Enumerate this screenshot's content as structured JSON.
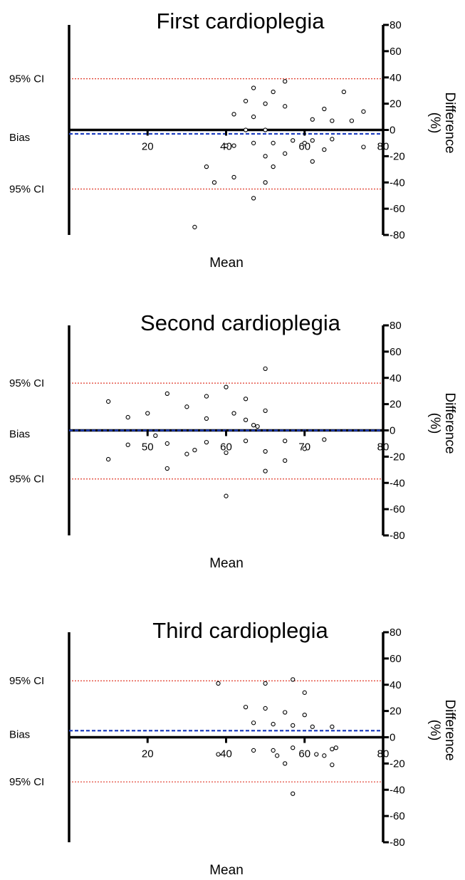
{
  "colors": {
    "axis": "#000000",
    "bias_line": "#1f3fbf",
    "ci_line": "#e03a2a",
    "points": "#000000"
  },
  "chart_data": [
    {
      "type": "scatter",
      "title": "First cardioplegia",
      "xlabel": "Mean",
      "ylabel_line1": "Difference",
      "ylabel_line2": "(%)",
      "xlim": [
        0,
        80
      ],
      "ylim": [
        -80,
        80
      ],
      "x_ticks": [
        20,
        40,
        60,
        80
      ],
      "y_ticks": [
        80,
        60,
        40,
        20,
        0,
        -20,
        -40,
        -60,
        -80
      ],
      "grid": false,
      "bias_label": "Bias",
      "ci_upper_label": "95% CI",
      "ci_lower_label": "95% CI",
      "bias": -3,
      "ci_upper": 39,
      "ci_lower": -45,
      "points": [
        [
          32,
          -74
        ],
        [
          35,
          -28
        ],
        [
          37,
          -40
        ],
        [
          40,
          -12
        ],
        [
          42,
          12
        ],
        [
          42,
          -12
        ],
        [
          42,
          -36
        ],
        [
          45,
          22
        ],
        [
          45,
          0
        ],
        [
          47,
          32
        ],
        [
          47,
          10
        ],
        [
          47,
          -10
        ],
        [
          47,
          -52
        ],
        [
          50,
          20
        ],
        [
          50,
          0
        ],
        [
          50,
          -20
        ],
        [
          50,
          -40
        ],
        [
          52,
          29
        ],
        [
          52,
          -10
        ],
        [
          52,
          -28
        ],
        [
          55,
          37
        ],
        [
          55,
          18
        ],
        [
          55,
          -18
        ],
        [
          57,
          -8
        ],
        [
          60,
          -10
        ],
        [
          62,
          8
        ],
        [
          62,
          -8
        ],
        [
          62,
          -24
        ],
        [
          65,
          16
        ],
        [
          65,
          -15
        ],
        [
          67,
          7
        ],
        [
          67,
          -7
        ],
        [
          70,
          29
        ],
        [
          72,
          7
        ],
        [
          75,
          14
        ],
        [
          75,
          -13
        ]
      ]
    },
    {
      "type": "scatter",
      "title": "Second cardioplegia",
      "xlabel": "Mean",
      "ylabel_line1": "Difference",
      "ylabel_line2": "(%)",
      "xlim": [
        40,
        80
      ],
      "ylim": [
        -80,
        80
      ],
      "x_ticks": [
        50,
        60,
        70,
        80
      ],
      "y_ticks": [
        80,
        60,
        40,
        20,
        0,
        -20,
        -40,
        -60,
        -80
      ],
      "grid": false,
      "bias_label": "Bias",
      "ci_upper_label": "95% CI",
      "ci_lower_label": "95% CI",
      "bias": 0,
      "ci_upper": 36,
      "ci_lower": -37,
      "points": [
        [
          45,
          22
        ],
        [
          45,
          -22
        ],
        [
          47.5,
          10
        ],
        [
          47.5,
          -11
        ],
        [
          50,
          13
        ],
        [
          51,
          -4
        ],
        [
          52.5,
          28
        ],
        [
          52.5,
          -10
        ],
        [
          52.5,
          -29
        ],
        [
          55,
          18
        ],
        [
          55,
          -18
        ],
        [
          56,
          -15
        ],
        [
          57.5,
          26
        ],
        [
          57.5,
          9
        ],
        [
          57.5,
          -9
        ],
        [
          60,
          33
        ],
        [
          60,
          -17
        ],
        [
          60,
          -50
        ],
        [
          61,
          13
        ],
        [
          62.5,
          8
        ],
        [
          62.5,
          24
        ],
        [
          62.5,
          -8
        ],
        [
          63.5,
          4
        ],
        [
          64,
          3
        ],
        [
          65,
          47
        ],
        [
          65,
          15
        ],
        [
          65,
          -16
        ],
        [
          65,
          -31
        ],
        [
          67.5,
          -8
        ],
        [
          67.5,
          -23
        ],
        [
          70,
          -14
        ],
        [
          72.5,
          -7
        ]
      ]
    },
    {
      "type": "scatter",
      "title": "Third cardioplegia",
      "xlabel": "Mean",
      "ylabel_line1": "Difference",
      "ylabel_line2": "(%)",
      "xlim": [
        0,
        80
      ],
      "ylim": [
        -80,
        80
      ],
      "x_ticks": [
        20,
        40,
        60,
        80
      ],
      "y_ticks": [
        80,
        60,
        40,
        20,
        0,
        -20,
        -40,
        -60,
        -80
      ],
      "grid": false,
      "bias_label": "Bias",
      "ci_upper_label": "95% CI",
      "ci_lower_label": "95% CI",
      "bias": 5,
      "ci_upper": 43,
      "ci_lower": -34,
      "points": [
        [
          38,
          41
        ],
        [
          38,
          -13
        ],
        [
          45,
          23
        ],
        [
          47,
          11
        ],
        [
          47,
          -10
        ],
        [
          50,
          41
        ],
        [
          50,
          22
        ],
        [
          52,
          10
        ],
        [
          52,
          -10
        ],
        [
          53,
          -14
        ],
        [
          55,
          19
        ],
        [
          55,
          -20
        ],
        [
          57,
          44
        ],
        [
          57,
          9
        ],
        [
          57,
          -8
        ],
        [
          57,
          -43
        ],
        [
          60,
          34
        ],
        [
          60,
          17
        ],
        [
          62,
          8
        ],
        [
          63,
          -13
        ],
        [
          65,
          -14
        ],
        [
          67,
          8
        ],
        [
          67,
          -9
        ],
        [
          67,
          -21
        ],
        [
          68,
          -8
        ]
      ]
    }
  ]
}
